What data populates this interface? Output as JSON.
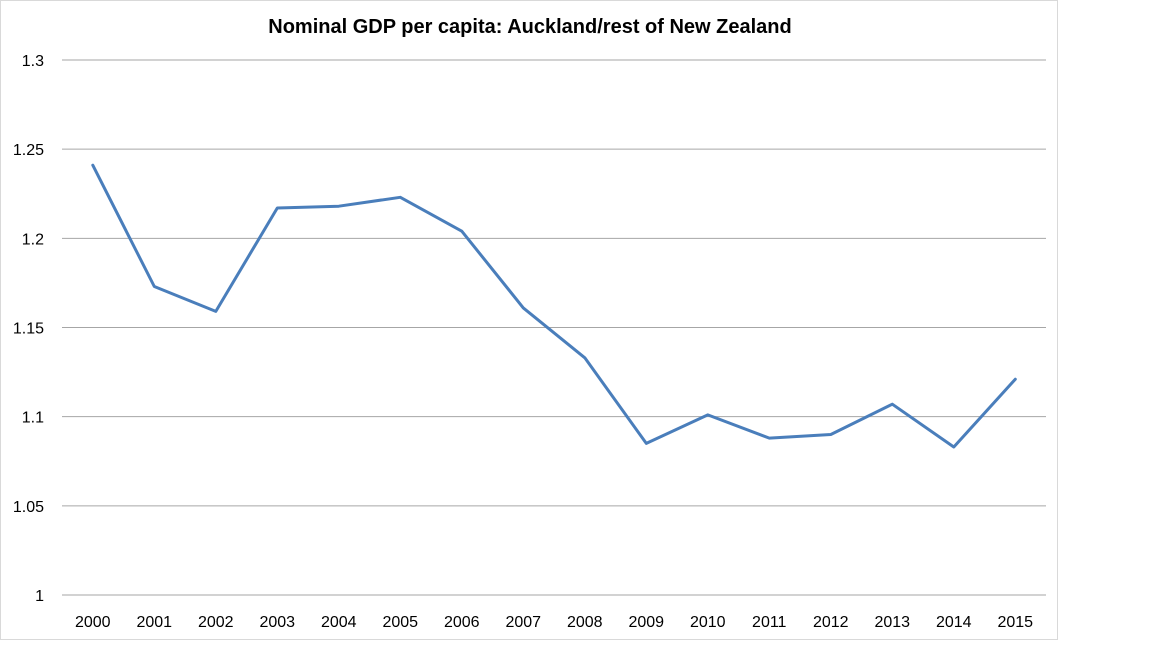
{
  "chart_data": {
    "type": "line",
    "title": "Nominal GDP per capita: Auckland/rest of New Zealand",
    "xlabel": "",
    "ylabel": "",
    "ylim": [
      1,
      1.3
    ],
    "yticks": [
      1,
      1.05,
      1.1,
      1.15,
      1.2,
      1.25,
      1.3
    ],
    "ytick_labels": [
      "1",
      "1.05",
      "1.1",
      "1.15",
      "1.2",
      "1.25",
      "1.3"
    ],
    "grid": true,
    "legend": "none",
    "categories": [
      "2000",
      "2001",
      "2002",
      "2003",
      "2004",
      "2005",
      "2006",
      "2007",
      "2008",
      "2009",
      "2010",
      "2011",
      "2012",
      "2013",
      "2014",
      "2015"
    ],
    "series": [
      {
        "name": "Auckland/rest of New Zealand",
        "color": "#4a7ebb",
        "values": [
          1.241,
          1.173,
          1.159,
          1.217,
          1.218,
          1.223,
          1.204,
          1.161,
          1.133,
          1.085,
          1.101,
          1.088,
          1.09,
          1.107,
          1.083,
          1.121
        ]
      }
    ],
    "colors": {
      "gridline": "#a6a6a6",
      "line": "#4a7ebb",
      "border": "#d9d9d9"
    }
  }
}
